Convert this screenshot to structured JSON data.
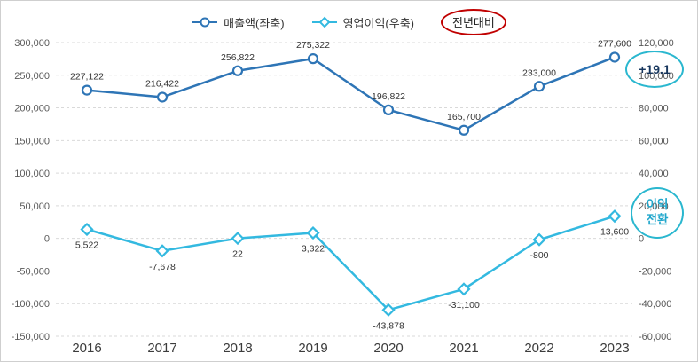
{
  "legend": {
    "revenue": {
      "label": "매출액(좌축)"
    },
    "operating_profit": {
      "label": "영업이익(우축)"
    },
    "yoy": {
      "label": "전년대비"
    }
  },
  "annotations": {
    "yoy_change": {
      "text": "+19.1"
    },
    "profit_turnaround": {
      "text": "이익\n전환"
    }
  },
  "colors": {
    "revenue": "#2e75b6",
    "operating_profit": "#33b9e0",
    "annotation_circle": "#2ab7cf",
    "yoy_circle": "#c00000",
    "grid": "#d9d9d9",
    "axis_text": "#595959",
    "label_text": "#333333"
  },
  "chart_data": {
    "type": "line",
    "categories": [
      "2016",
      "2017",
      "2018",
      "2019",
      "2020",
      "2021",
      "2022",
      "2023"
    ],
    "series": [
      {
        "name": "매출액(좌축)",
        "axis": "left",
        "marker": "circle",
        "color": "#2e75b6",
        "label_position": "above",
        "values": [
          227122,
          216422,
          256822,
          275322,
          196822,
          165700,
          233000,
          277600
        ]
      },
      {
        "name": "영업이익(우축)",
        "axis": "right",
        "marker": "diamond",
        "color": "#33b9e0",
        "label_position": "below",
        "values": [
          5522,
          -7678,
          22,
          3322,
          -43878,
          -31100,
          -800,
          13600
        ]
      }
    ],
    "left_axis": {
      "min": -150000,
      "max": 300000,
      "step": 50000,
      "ticks": [
        "300,000",
        "250,000",
        "200,000",
        "150,000",
        "100,000",
        "50,000",
        "0",
        "-50,000",
        "-100,000",
        "-150,000"
      ]
    },
    "right_axis": {
      "min": -60000,
      "max": 120000,
      "step": 20000,
      "ticks": [
        "120,000",
        "100,000",
        "80,000",
        "60,000",
        "40,000",
        "20,000",
        "0",
        "-20,000",
        "-40,000",
        "-60,000"
      ]
    },
    "grid": "horizontal-dashed",
    "legend_position": "top"
  }
}
